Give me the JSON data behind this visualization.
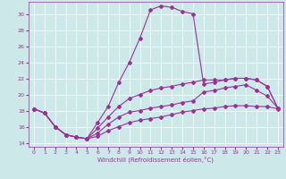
{
  "bg_color": "#cce8e8",
  "line_color": "#993399",
  "xlim": [
    -0.5,
    23.5
  ],
  "ylim": [
    13.5,
    31.5
  ],
  "yticks": [
    14,
    16,
    18,
    20,
    22,
    24,
    26,
    28,
    30
  ],
  "xticks": [
    0,
    1,
    2,
    3,
    4,
    5,
    6,
    7,
    8,
    9,
    10,
    11,
    12,
    13,
    14,
    15,
    16,
    17,
    18,
    19,
    20,
    21,
    22,
    23
  ],
  "xlabel": "Windchill (Refroidissement éolien,°C)",
  "line1_x": [
    0,
    1,
    2,
    3,
    4,
    5,
    6,
    7,
    8,
    9,
    10,
    11,
    12,
    13,
    14,
    15,
    16,
    17,
    18,
    19,
    20,
    21,
    22,
    23
  ],
  "line1_y": [
    18.2,
    17.7,
    16.0,
    15.0,
    14.7,
    14.5,
    16.5,
    18.5,
    21.5,
    24.0,
    27.0,
    30.5,
    31.0,
    30.8,
    30.3,
    30.0,
    21.3,
    21.5,
    21.8,
    22.0,
    22.0,
    21.8,
    21.0,
    18.3
  ],
  "line2_x": [
    0,
    1,
    2,
    3,
    4,
    5,
    6,
    7,
    8,
    9,
    10,
    11,
    12,
    13,
    14,
    15,
    16,
    17,
    18,
    19,
    20,
    21,
    22,
    23
  ],
  "line2_y": [
    18.2,
    17.7,
    16.0,
    15.0,
    14.7,
    14.5,
    15.8,
    17.2,
    18.5,
    19.5,
    20.0,
    20.5,
    20.8,
    21.0,
    21.3,
    21.5,
    21.8,
    21.8,
    21.8,
    22.0,
    22.0,
    21.8,
    21.0,
    18.3
  ],
  "line3_x": [
    0,
    1,
    2,
    3,
    4,
    5,
    6,
    7,
    8,
    9,
    10,
    11,
    12,
    13,
    14,
    15,
    16,
    17,
    18,
    19,
    20,
    21,
    22,
    23
  ],
  "line3_y": [
    18.2,
    17.7,
    16.0,
    15.0,
    14.7,
    14.5,
    15.2,
    16.3,
    17.2,
    17.8,
    18.0,
    18.3,
    18.5,
    18.7,
    19.0,
    19.2,
    20.3,
    20.5,
    20.8,
    21.0,
    21.2,
    20.5,
    19.8,
    18.3
  ],
  "line4_x": [
    0,
    1,
    2,
    3,
    4,
    5,
    6,
    7,
    8,
    9,
    10,
    11,
    12,
    13,
    14,
    15,
    16,
    17,
    18,
    19,
    20,
    21,
    22,
    23
  ],
  "line4_y": [
    18.2,
    17.7,
    16.0,
    15.0,
    14.7,
    14.5,
    14.8,
    15.5,
    16.0,
    16.5,
    16.8,
    17.0,
    17.2,
    17.5,
    17.8,
    18.0,
    18.2,
    18.3,
    18.5,
    18.6,
    18.6,
    18.5,
    18.5,
    18.2
  ]
}
